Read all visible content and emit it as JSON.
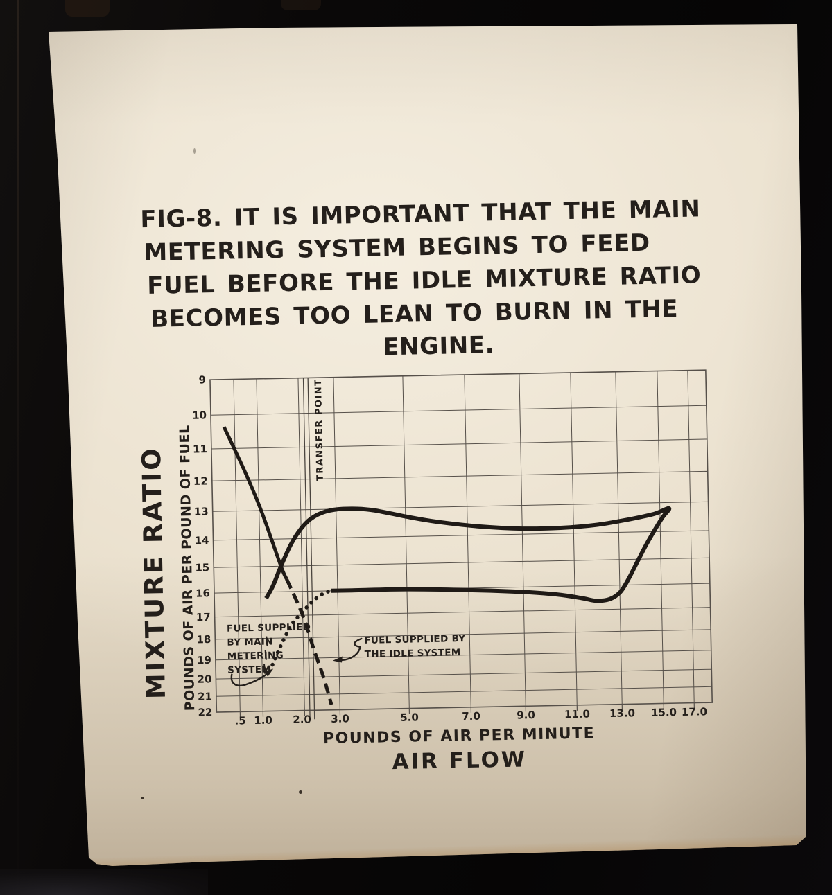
{
  "caption": {
    "lines": [
      "FIG-8. IT IS IMPORTANT THAT THE MAIN",
      "METERING SYSTEM BEGINS TO FEED",
      "FUEL BEFORE THE IDLE MIXTURE RATIO",
      "BECOMES TOO LEAN TO BURN IN THE",
      "ENGINE."
    ]
  },
  "chart": {
    "y_axis": {
      "title": "MIXTURE RATIO",
      "subtitle": "POUNDS OF AIR PER POUND OF FUEL",
      "tick_labels": [
        "9",
        "10",
        "11",
        "12",
        "13",
        "14",
        "15",
        "16",
        "17",
        "18",
        "19",
        "20",
        "21",
        "22"
      ]
    },
    "x_axis": {
      "title": "POUNDS OF AIR PER MINUTE",
      "subtitle": "AIR FLOW",
      "tick_labels": [
        ".5",
        "1.0",
        "2.0",
        "3.0",
        "5.0",
        "7.0",
        "9.0",
        "11.0",
        "13.0",
        "15.0",
        "17.0"
      ]
    },
    "transfer_point_label": "TRANSFER POINT",
    "annotations": {
      "main_metering_lines": [
        "FUEL SUPPLIED",
        "BY MAIN",
        "METERING",
        "SYSTEM"
      ],
      "idle_system_lines": [
        "FUEL SUPPLIED BY",
        "THE IDLE SYSTEM"
      ]
    },
    "ink_color": "#241f1b",
    "grid_color": "#56504a",
    "poster_color": "#e8decb",
    "background_color": "#0a0808"
  },
  "chart_data": {
    "type": "line",
    "title": "FIG-8. It is important that the main metering system begins to feed fuel before the idle mixture ratio becomes too lean to burn in the engine.",
    "xlabel": "POUNDS OF AIR PER MINUTE (AIR FLOW)",
    "ylabel": "MIXTURE RATIO (POUNDS OF AIR PER POUND OF FUEL)",
    "x_scale": "nonlinear-compressed",
    "x_ticks": [
      0.5,
      1.0,
      2.0,
      3.0,
      5.0,
      7.0,
      9.0,
      11.0,
      13.0,
      15.0,
      17.0
    ],
    "y_ticks": [
      9,
      10,
      11,
      12,
      13,
      14,
      15,
      16,
      17,
      18,
      19,
      20,
      21,
      22
    ],
    "y_axis_inverted": true,
    "grid": true,
    "transfer_point_x": [
      2.05,
      2.18
    ],
    "series": [
      {
        "name": "idle-system-mixture-solid",
        "style": "solid",
        "width": 5,
        "points": [
          [
            0.33,
            10.35
          ],
          [
            0.7,
            11.7
          ],
          [
            1.05,
            13.0
          ],
          [
            1.5,
            15.0
          ],
          [
            1.63,
            15.5
          ]
        ]
      },
      {
        "name": "idle-system-too-lean-dashed",
        "style": "dashed",
        "width": 5,
        "points": [
          [
            1.63,
            15.5
          ],
          [
            2.0,
            17.0
          ],
          [
            2.3,
            18.6
          ],
          [
            2.55,
            20.0
          ],
          [
            2.76,
            21.65
          ]
        ]
      },
      {
        "name": "main-metering-system-dotted",
        "style": "dotted",
        "width": 5.5,
        "points": [
          [
            1.25,
            19.3
          ],
          [
            1.5,
            18.2
          ],
          [
            1.75,
            17.35
          ],
          [
            2.0,
            16.85
          ],
          [
            2.3,
            16.4
          ],
          [
            2.6,
            16.1
          ],
          [
            2.82,
            16.0
          ]
        ]
      },
      {
        "name": "engine-operating-mixture-loop",
        "style": "solid",
        "width": 6,
        "points": [
          [
            1.13,
            16.25
          ],
          [
            1.3,
            15.75
          ],
          [
            1.5,
            15.0
          ],
          [
            1.75,
            14.2
          ],
          [
            2.0,
            13.65
          ],
          [
            2.3,
            13.3
          ],
          [
            2.7,
            13.08
          ],
          [
            3.2,
            13.0
          ],
          [
            4.0,
            13.05
          ],
          [
            5.0,
            13.3
          ],
          [
            6.0,
            13.5
          ],
          [
            7.5,
            13.7
          ],
          [
            9.0,
            13.8
          ],
          [
            10.5,
            13.8
          ],
          [
            12.0,
            13.72
          ],
          [
            13.5,
            13.55
          ],
          [
            14.7,
            13.38
          ],
          [
            15.6,
            13.2
          ],
          [
            15.1,
            13.55
          ],
          [
            14.4,
            14.35
          ],
          [
            13.9,
            15.05
          ],
          [
            13.4,
            15.8
          ],
          [
            13.0,
            16.3
          ],
          [
            12.5,
            16.58
          ],
          [
            11.9,
            16.62
          ],
          [
            11.3,
            16.5
          ],
          [
            10.3,
            16.33
          ],
          [
            9.0,
            16.2
          ],
          [
            7.0,
            16.08
          ],
          [
            5.0,
            16.0
          ],
          [
            3.5,
            16.0
          ],
          [
            2.82,
            16.0
          ]
        ]
      }
    ]
  }
}
